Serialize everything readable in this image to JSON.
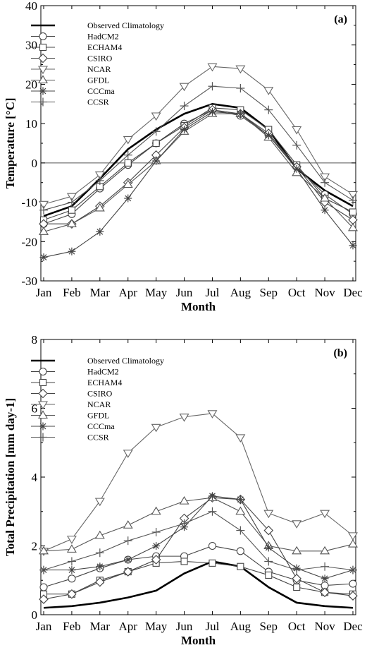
{
  "chart_data": [
    {
      "type": "line",
      "panel_label": "(a)",
      "xlabel": "Month",
      "ylabel": "Temperature [°C]",
      "categories": [
        "Jan",
        "Feb",
        "Mar",
        "Apr",
        "May",
        "Jun",
        "Jul",
        "Aug",
        "Sep",
        "Oct",
        "Nov",
        "Dec"
      ],
      "ylim": [
        -30,
        40
      ],
      "yticks": [
        -30,
        -20,
        -10,
        0,
        10,
        20,
        30,
        40
      ],
      "zero_line": true,
      "legend_position": "top-left",
      "series": [
        {
          "name": "Observed Climatology",
          "marker": "none",
          "color": "#000000",
          "values": [
            -13.5,
            -11,
            -4,
            3.5,
            8.5,
            12.5,
            15,
            14,
            8.5,
            -1.5,
            -7,
            -11
          ]
        },
        {
          "name": "HadCM2",
          "marker": "circle",
          "color": "#444444",
          "values": [
            -15.5,
            -13,
            -6.5,
            -0.5,
            5,
            10,
            13.5,
            12,
            7,
            -1,
            -8,
            -13
          ]
        },
        {
          "name": "ECHAM4",
          "marker": "square",
          "color": "#444444",
          "values": [
            -14.5,
            -12,
            -6,
            0,
            5,
            9.5,
            14,
            13.5,
            8.5,
            -0.5,
            -9,
            -12.5
          ]
        },
        {
          "name": "CSIRO",
          "marker": "diamond",
          "color": "#444444",
          "values": [
            -15.5,
            -15.5,
            -11,
            -5,
            2,
            9,
            13.5,
            12.5,
            7.5,
            -1,
            -10,
            -14.5
          ]
        },
        {
          "name": "NCAR",
          "marker": "triangle-down",
          "color": "#666666",
          "values": [
            -10.5,
            -8.5,
            -3,
            6,
            12,
            19.5,
            24.5,
            24,
            18.5,
            8.5,
            -3.5,
            -8
          ]
        },
        {
          "name": "GFDL",
          "marker": "triangle-up",
          "color": "#555555",
          "values": [
            -17.5,
            -15.5,
            -11.5,
            -5.5,
            0.5,
            8,
            12.5,
            12.5,
            6.5,
            -2.5,
            -9,
            -16.5
          ]
        },
        {
          "name": "CCCma",
          "marker": "asterisk",
          "color": "#444444",
          "values": [
            -24,
            -22.5,
            -17.5,
            -9,
            0.5,
            8.5,
            13,
            12.5,
            7,
            -1.5,
            -12,
            -21
          ]
        },
        {
          "name": "CCSR",
          "marker": "plus",
          "color": "#555555",
          "values": [
            -12,
            -10,
            -4.5,
            2,
            8,
            14.5,
            19.5,
            19,
            13.5,
            4.5,
            -5,
            -9.5
          ]
        }
      ]
    },
    {
      "type": "line",
      "panel_label": "(b)",
      "xlabel": "Month",
      "ylabel": "Total Precipitation [mm day-1]",
      "categories": [
        "Jan",
        "Feb",
        "Mar",
        "Apr",
        "May",
        "Jun",
        "Jul",
        "Aug",
        "Sep",
        "Oct",
        "Nov",
        "Dec"
      ],
      "ylim": [
        0,
        8
      ],
      "yticks": [
        0,
        2,
        4,
        6,
        8
      ],
      "legend_position": "top-left",
      "series": [
        {
          "name": "Observed Climatology",
          "marker": "none",
          "color": "#000000",
          "values": [
            0.2,
            0.25,
            0.35,
            0.5,
            0.7,
            1.2,
            1.55,
            1.4,
            0.8,
            0.35,
            0.25,
            0.2
          ]
        },
        {
          "name": "HadCM2",
          "marker": "circle",
          "color": "#444444",
          "values": [
            0.8,
            1.05,
            1.35,
            1.6,
            1.7,
            1.7,
            2.0,
            1.85,
            1.25,
            1.0,
            0.85,
            0.9
          ]
        },
        {
          "name": "ECHAM4",
          "marker": "square",
          "color": "#444444",
          "values": [
            0.6,
            0.6,
            1.0,
            1.25,
            1.5,
            1.55,
            1.5,
            1.4,
            1.15,
            0.8,
            0.65,
            0.6
          ]
        },
        {
          "name": "CSIRO",
          "marker": "diamond",
          "color": "#444444",
          "values": [
            0.45,
            0.6,
            0.95,
            1.25,
            1.6,
            2.8,
            3.4,
            3.35,
            2.45,
            1.05,
            0.65,
            0.55
          ]
        },
        {
          "name": "NCAR",
          "marker": "triangle-down",
          "color": "#666666",
          "values": [
            1.85,
            2.2,
            3.3,
            4.7,
            5.45,
            5.75,
            5.85,
            5.15,
            2.95,
            2.65,
            2.95,
            2.3
          ]
        },
        {
          "name": "GFDL",
          "marker": "triangle-up",
          "color": "#555555",
          "values": [
            1.85,
            1.9,
            2.3,
            2.6,
            3.0,
            3.3,
            3.4,
            3.0,
            2.0,
            1.85,
            1.85,
            2.05
          ]
        },
        {
          "name": "CCCma",
          "marker": "asterisk",
          "color": "#444444",
          "values": [
            1.3,
            1.3,
            1.4,
            1.6,
            2.0,
            2.55,
            3.45,
            3.35,
            1.95,
            1.35,
            1.05,
            1.3
          ]
        },
        {
          "name": "CCSR",
          "marker": "plus",
          "color": "#555555",
          "values": [
            1.3,
            1.55,
            1.8,
            2.15,
            2.4,
            2.65,
            3.0,
            2.45,
            1.55,
            1.3,
            1.4,
            1.3
          ]
        }
      ]
    }
  ]
}
